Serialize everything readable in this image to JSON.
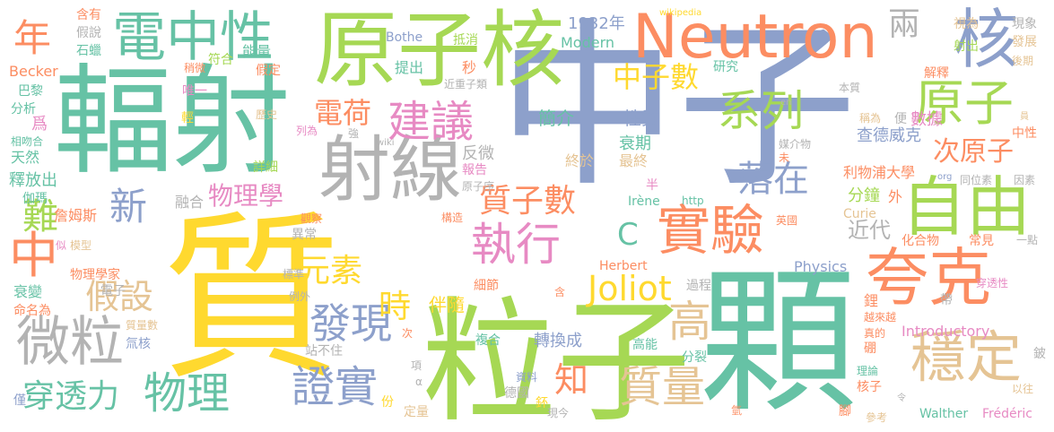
{
  "palette": {
    "blue": "#8da0cb",
    "teal": "#66c2a5",
    "orange": "#fc8d62",
    "green": "#a6d854",
    "yellow": "#ffd92f",
    "pink": "#e78ac3",
    "tan": "#e5c494",
    "gray": "#b3b3b3"
  },
  "words": [
    {
      "text": "中子",
      "color": "blue"
    },
    {
      "text": "質",
      "color": "yellow"
    },
    {
      "text": "粒子",
      "color": "green"
    },
    {
      "text": "顆",
      "color": "teal"
    },
    {
      "text": "輻射",
      "color": "teal"
    },
    {
      "text": "原子核",
      "color": "green"
    },
    {
      "text": "射線",
      "color": "gray"
    },
    {
      "text": "Neutron",
      "color": "orange"
    },
    {
      "text": "電中性",
      "color": "teal"
    },
    {
      "text": "夸克",
      "color": "orange"
    },
    {
      "text": "自由",
      "color": "green"
    },
    {
      "text": "微粒",
      "color": "gray"
    },
    {
      "text": "穩定",
      "color": "tan"
    },
    {
      "text": "實驗",
      "color": "orange"
    },
    {
      "text": "建議",
      "color": "pink"
    },
    {
      "text": "核",
      "color": "blue"
    },
    {
      "text": "原子",
      "color": "green"
    },
    {
      "text": "系列",
      "color": "green"
    },
    {
      "text": "執行",
      "color": "pink"
    },
    {
      "text": "發現",
      "color": "blue"
    },
    {
      "text": "證實",
      "color": "blue"
    },
    {
      "text": "物理",
      "color": "teal"
    },
    {
      "text": "質量",
      "color": "tan"
    },
    {
      "text": "高",
      "color": "tan"
    },
    {
      "text": "Joliot",
      "color": "yellow"
    },
    {
      "text": "中",
      "color": "orange"
    },
    {
      "text": "穿透力",
      "color": "teal"
    },
    {
      "text": "假設",
      "color": "tan"
    },
    {
      "text": "元素",
      "color": "yellow"
    },
    {
      "text": "質子數",
      "color": "orange"
    },
    {
      "text": "落在",
      "color": "blue"
    },
    {
      "text": "中子數",
      "color": "yellow"
    },
    {
      "text": "次原子",
      "color": "orange"
    },
    {
      "text": "電荷",
      "color": "orange"
    },
    {
      "text": "新",
      "color": "blue"
    },
    {
      "text": "年",
      "color": "orange"
    },
    {
      "text": "兩",
      "color": "gray"
    },
    {
      "text": "難",
      "color": "green"
    },
    {
      "text": "知",
      "color": "orange"
    },
    {
      "text": "時",
      "color": "yellow"
    },
    {
      "text": "C",
      "color": "teal"
    },
    {
      "text": "物理學",
      "color": "pink"
    },
    {
      "text": "簡介",
      "color": "teal"
    },
    {
      "text": "性質",
      "color": "blue"
    },
    {
      "text": "衰期",
      "color": "teal"
    },
    {
      "text": "終於",
      "color": "tan"
    },
    {
      "text": "最終",
      "color": "tan"
    },
    {
      "text": "近代",
      "color": "gray"
    },
    {
      "text": "分鐘",
      "color": "green"
    },
    {
      "text": "伴隨",
      "color": "yellow"
    },
    {
      "text": "轉換成",
      "color": "blue"
    },
    {
      "text": "查德威克",
      "color": "blue"
    },
    {
      "text": "利物浦大學",
      "color": "orange"
    },
    {
      "text": "數據",
      "color": "pink"
    },
    {
      "text": "1932年",
      "color": "blue"
    },
    {
      "text": "Modern",
      "color": "teal"
    },
    {
      "text": "Bothe",
      "color": "blue"
    },
    {
      "text": "抵消",
      "color": "green"
    },
    {
      "text": "提出",
      "color": "teal"
    },
    {
      "text": "秒",
      "color": "orange"
    },
    {
      "text": "近重子類",
      "color": "gray"
    },
    {
      "text": "研究",
      "color": "teal"
    },
    {
      "text": "能量",
      "color": "teal"
    },
    {
      "text": "符合",
      "color": "green"
    },
    {
      "text": "假定",
      "color": "orange"
    },
    {
      "text": "唯一",
      "color": "pink"
    },
    {
      "text": "輕",
      "color": "yellow"
    },
    {
      "text": "歷史",
      "color": "tan"
    },
    {
      "text": "Becker",
      "color": "orange"
    },
    {
      "text": "巴黎",
      "color": "teal"
    },
    {
      "text": "分析",
      "color": "teal"
    },
    {
      "text": "相吻合",
      "color": "teal"
    },
    {
      "text": "天然",
      "color": "teal"
    },
    {
      "text": "釋放出",
      "color": "teal"
    },
    {
      "text": "伽瑪",
      "color": "teal"
    },
    {
      "text": "詹姆斯",
      "color": "orange"
    },
    {
      "text": "融合",
      "color": "gray"
    },
    {
      "text": "反微",
      "color": "gray"
    },
    {
      "text": "報告",
      "color": "pink"
    },
    {
      "text": "原子序",
      "color": "gray"
    },
    {
      "text": "物理學家",
      "color": "orange"
    },
    {
      "text": "電子",
      "color": "gray"
    },
    {
      "text": "衰變",
      "color": "teal"
    },
    {
      "text": "命名為",
      "color": "orange"
    },
    {
      "text": "質量數",
      "color": "tan"
    },
    {
      "text": "氚核",
      "color": "blue"
    },
    {
      "text": "站不住",
      "color": "gray"
    },
    {
      "text": "德國",
      "color": "gray"
    },
    {
      "text": "定量",
      "color": "tan"
    },
    {
      "text": "現今",
      "color": "gray"
    },
    {
      "text": "資料",
      "color": "blue"
    },
    {
      "text": "複合",
      "color": "teal"
    },
    {
      "text": "細節",
      "color": "orange"
    },
    {
      "text": "例外",
      "color": "gray"
    },
    {
      "text": "異常",
      "color": "gray"
    },
    {
      "text": "觀察",
      "color": "orange"
    },
    {
      "text": "構造",
      "color": "orange"
    },
    {
      "text": "Herbert",
      "color": "orange"
    },
    {
      "text": "Physics",
      "color": "blue"
    },
    {
      "text": "過程",
      "color": "gray"
    },
    {
      "text": "高能",
      "color": "teal"
    },
    {
      "text": "分裂",
      "color": "teal"
    },
    {
      "text": "Introductory",
      "color": "pink"
    },
    {
      "text": "越來越",
      "color": "orange"
    },
    {
      "text": "鋰",
      "color": "orange"
    },
    {
      "text": "帶",
      "color": "gray"
    },
    {
      "text": "真的",
      "color": "orange"
    },
    {
      "text": "硼",
      "color": "orange"
    },
    {
      "text": "穿透性",
      "color": "pink"
    },
    {
      "text": "理論",
      "color": "teal"
    },
    {
      "text": "核子",
      "color": "orange"
    },
    {
      "text": "Walther",
      "color": "teal"
    },
    {
      "text": "Frédéric",
      "color": "pink"
    },
    {
      "text": "以往",
      "color": "tan"
    },
    {
      "text": "參考",
      "color": "tan"
    },
    {
      "text": "腳",
      "color": "orange"
    },
    {
      "text": "英國",
      "color": "orange"
    },
    {
      "text": "Curie",
      "color": "tan"
    },
    {
      "text": "Irène",
      "color": "teal"
    },
    {
      "text": "http",
      "color": "teal"
    },
    {
      "text": "半",
      "color": "pink"
    },
    {
      "text": "化合物",
      "color": "orange"
    },
    {
      "text": "常見",
      "color": "orange"
    },
    {
      "text": "一點",
      "color": "gray"
    },
    {
      "text": "因素",
      "color": "gray"
    },
    {
      "text": "同位素",
      "color": "gray"
    },
    {
      "text": "org",
      "color": "blue"
    },
    {
      "text": "外",
      "color": "orange"
    },
    {
      "text": "媒介物",
      "color": "gray"
    },
    {
      "text": "未",
      "color": "orange"
    },
    {
      "text": "中性",
      "color": "orange"
    },
    {
      "text": "稱為",
      "color": "tan"
    },
    {
      "text": "便",
      "color": "gray"
    },
    {
      "text": "本質",
      "color": "gray"
    },
    {
      "text": "解釋",
      "color": "orange"
    },
    {
      "text": "後期",
      "color": "tan"
    },
    {
      "text": "發展",
      "color": "tan"
    },
    {
      "text": "射出",
      "color": "green"
    },
    {
      "text": "視為",
      "color": "tan"
    },
    {
      "text": "現象",
      "color": "gray"
    },
    {
      "text": "wikipedia",
      "color": "yellow"
    },
    {
      "text": "含有",
      "color": "orange"
    },
    {
      "text": "假說",
      "color": "gray"
    },
    {
      "text": "石蠟",
      "color": "teal"
    },
    {
      "text": "稍微",
      "color": "orange"
    },
    {
      "text": "爲",
      "color": "pink"
    },
    {
      "text": "列為",
      "color": "pink"
    },
    {
      "text": "強",
      "color": "gray"
    },
    {
      "text": "wiki",
      "color": "gray"
    },
    {
      "text": "詳細",
      "color": "green"
    },
    {
      "text": "似",
      "color": "pink"
    },
    {
      "text": "模型",
      "color": "tan"
    },
    {
      "text": "標準",
      "color": "gray"
    },
    {
      "text": "次",
      "color": "orange"
    },
    {
      "text": "項",
      "color": "gray"
    },
    {
      "text": "份",
      "color": "yellow"
    },
    {
      "text": "鈈",
      "color": "yellow"
    },
    {
      "text": "含",
      "color": "orange"
    },
    {
      "text": "α",
      "color": "gray"
    },
    {
      "text": "en",
      "color": "gray"
    },
    {
      "text": "員",
      "color": "tan"
    },
    {
      "text": "令",
      "color": "gray"
    },
    {
      "text": "鈹",
      "color": "gray"
    },
    {
      "text": "氫",
      "color": "orange"
    },
    {
      "text": "僅",
      "color": "blue"
    }
  ]
}
